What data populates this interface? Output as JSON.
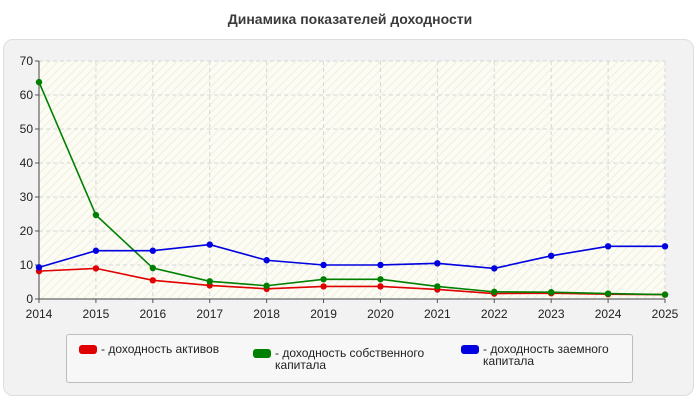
{
  "chart_data": {
    "type": "line",
    "title": "Динамика показателей доходности",
    "xlabel": "",
    "ylabel": "",
    "x": [
      2014,
      2015,
      2016,
      2017,
      2018,
      2019,
      2020,
      2021,
      2022,
      2023,
      2024,
      2025
    ],
    "xlim": [
      2014,
      2025
    ],
    "ylim": [
      0,
      70
    ],
    "yticks": [
      0,
      10,
      20,
      30,
      40,
      50,
      60,
      70
    ],
    "grid": true,
    "legend_position": "bottom",
    "series": [
      {
        "name": "- доходность активов",
        "color": "#e00000",
        "values": [
          8.2,
          9.0,
          5.5,
          4.0,
          3.0,
          3.7,
          3.7,
          2.8,
          1.6,
          1.7,
          1.4,
          1.3
        ]
      },
      {
        "name": "- доходность собственного\nкапитала",
        "color": "#008000",
        "values": [
          63.8,
          24.7,
          9.1,
          5.2,
          3.9,
          5.8,
          5.8,
          3.7,
          2.1,
          2.0,
          1.6,
          1.3
        ]
      },
      {
        "name": "- доходность заемного\nкапитала",
        "color": "#0000e0",
        "values": [
          9.3,
          14.2,
          14.2,
          16.0,
          11.4,
          10.0,
          10.0,
          10.5,
          9.0,
          12.7,
          15.5,
          15.5
        ]
      }
    ]
  }
}
